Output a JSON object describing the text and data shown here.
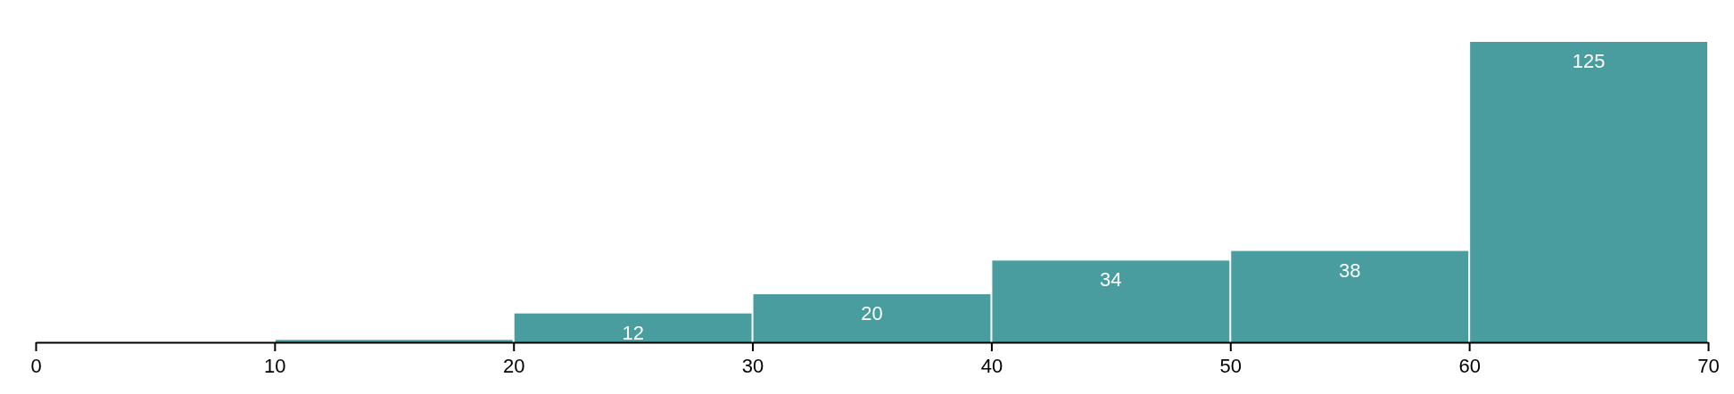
{
  "chart_data": {
    "type": "bar",
    "x": [
      15,
      25,
      35,
      45,
      55,
      65
    ],
    "values": [
      1,
      12,
      20,
      34,
      38,
      125
    ],
    "value_labels": [
      null,
      "12",
      "20",
      "34",
      "38",
      "125"
    ],
    "color": "#4a9d9f",
    "xlim": [
      0,
      70
    ],
    "xticks": [
      0,
      10,
      20,
      30,
      40,
      50,
      60,
      70
    ],
    "tick_labels": "x"
  }
}
